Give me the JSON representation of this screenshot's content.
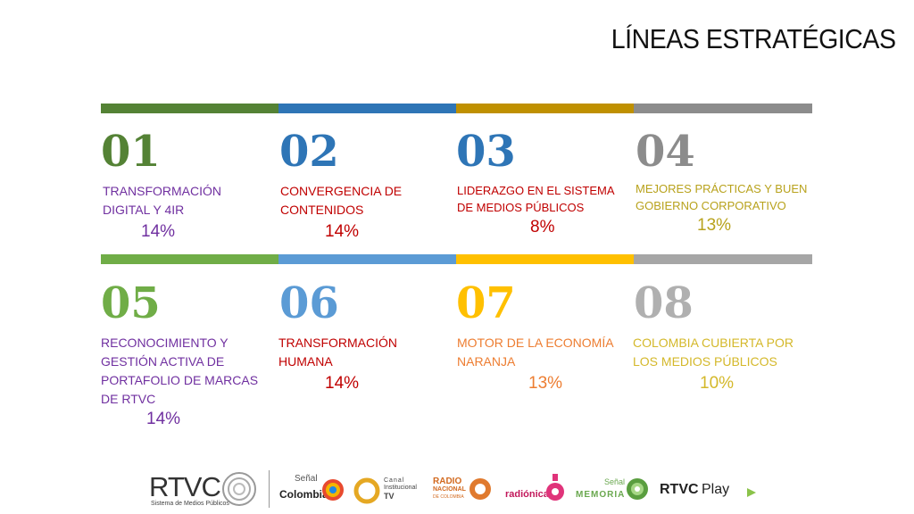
{
  "header": {
    "title": "LÍNEAS ESTRATÉGICAS"
  },
  "colors": {
    "green": "#548235",
    "blue": "#2e75b6",
    "gold": "#bf9000",
    "gray": "#808080",
    "green_light": "#70ad47",
    "blue_light": "#5b9bd5",
    "yellow": "#ffc000",
    "gray_light": "#a6a6a6",
    "purple": "#7030a0",
    "red": "#c00000",
    "orange": "#ed7d31",
    "olive": "#b8a21c"
  },
  "items": [
    {
      "number": "01",
      "label": "TRANSFORMACIÓN DIGITAL Y 4IR",
      "percent": "14%"
    },
    {
      "number": "02",
      "label": "CONVERGENCIA DE CONTENIDOS",
      "percent": "14%"
    },
    {
      "number": "03",
      "label": "LIDERAZGO EN EL SISTEMA DE MEDIOS PÚBLICOS",
      "percent": "8%"
    },
    {
      "number": "04",
      "label": "MEJORES PRÁCTICAS Y BUEN GOBIERNO CORPORATIVO",
      "percent": "13%"
    },
    {
      "number": "05",
      "label": "RECONOCIMIENTO Y GESTIÓN ACTIVA DE PORTAFOLIO DE MARCAS DE RTVC",
      "percent": "14%"
    },
    {
      "number": "06",
      "label": "TRANSFORMACIÓN HUMANA",
      "percent": "14%"
    },
    {
      "number": "07",
      "label": "MOTOR DE LA ECONOMÍA NARANJA",
      "percent": "13%"
    },
    {
      "number": "08",
      "label": "COLOMBIA CUBIERTA POR LOS MEDIOS PÚBLICOS",
      "percent": "10%"
    }
  ],
  "footer": {
    "rtvc": "RTVC",
    "rtvc_sub": "Sistema de Medios Públicos",
    "senal_colombia_top": "Señal",
    "senal_colombia_bottom": "Colombia",
    "canal_1": "Canal",
    "canal_2": "Institucional",
    "canal_3": "TV",
    "radio_1": "RADIO",
    "radio_2": "NACIONAL",
    "radio_3": "DE COLOMBIA",
    "radionica": "radiónica",
    "memoria_top": "Señal",
    "memoria_bottom": "MEMORIA",
    "play_1": "RTVC",
    "play_2": "Play"
  }
}
